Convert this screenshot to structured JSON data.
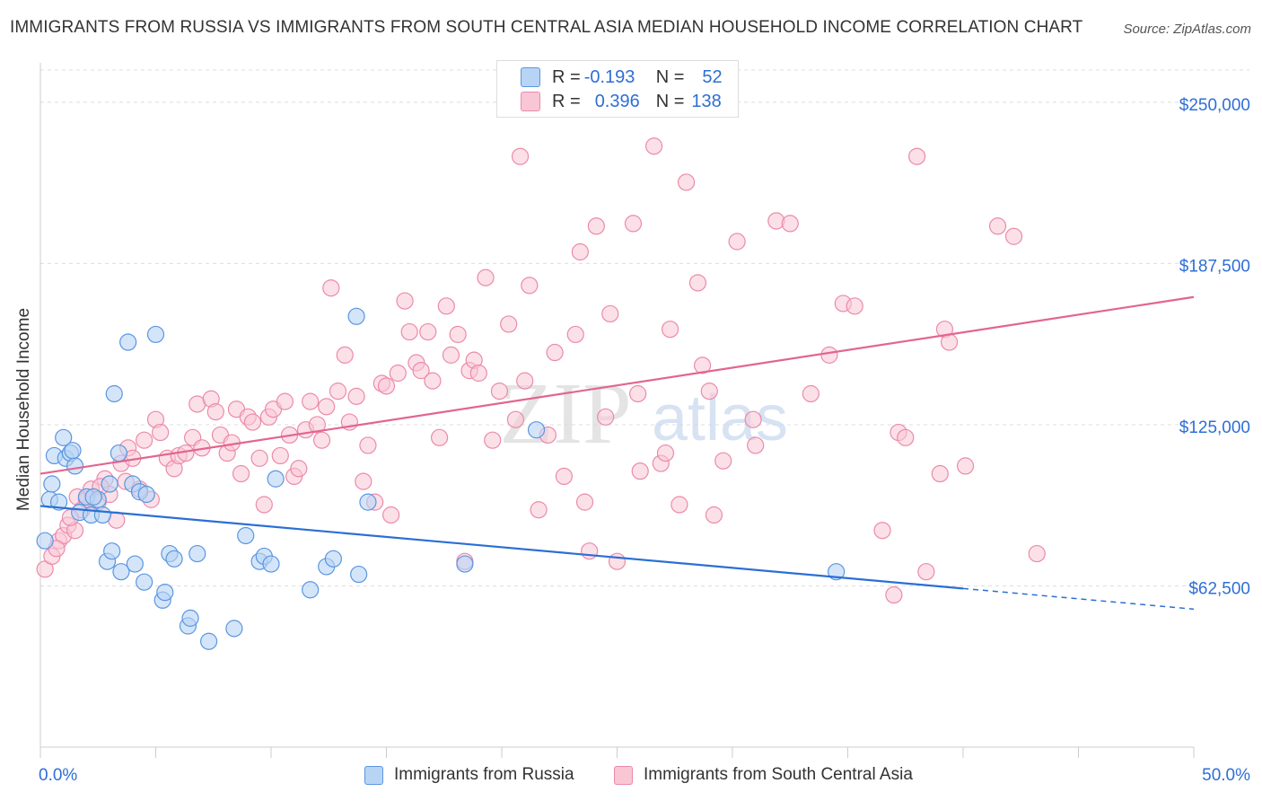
{
  "title": "IMMIGRANTS FROM RUSSIA VS IMMIGRANTS FROM SOUTH CENTRAL ASIA MEDIAN HOUSEHOLD INCOME CORRELATION CHART",
  "source": "Source: ZipAtlas.com",
  "watermark": {
    "zip": "ZIP",
    "atlas": "atlas"
  },
  "legend": {
    "russia": {
      "r_label": "R = ",
      "r_value": "-0.193",
      "n_label": "N = ",
      "n_value": "52"
    },
    "sca": {
      "r_label": "R = ",
      "r_value": "0.396",
      "n_label": "N = ",
      "n_value": "138"
    }
  },
  "colors": {
    "russia_fill": "#b8d4f5",
    "russia_stroke": "#5a96e0",
    "russia_line": "#2a6fd4",
    "sca_fill": "#f9c6d6",
    "sca_stroke": "#eb8aaa",
    "sca_line": "#e26590",
    "axis_text": "#2e6ed6",
    "grid": "#dddddd"
  },
  "chart_data": {
    "type": "scatter",
    "title": "IMMIGRANTS FROM RUSSIA VS IMMIGRANTS FROM SOUTH CENTRAL ASIA MEDIAN HOUSEHOLD INCOME CORRELATION CHART",
    "xlabel": "",
    "ylabel": "Median Household Income",
    "xlim": [
      0,
      50
    ],
    "ylim": [
      0,
      262500
    ],
    "x_tick_labels": [
      "0.0%",
      "50.0%"
    ],
    "y_ticks": [
      62500,
      125000,
      187500,
      250000
    ],
    "y_tick_labels": [
      "$62,500",
      "$125,000",
      "$187,500",
      "$250,000"
    ],
    "grid": true,
    "legend_position": "top-center",
    "series": [
      {
        "name": "Immigrants from Russia",
        "r": -0.193,
        "n": 52,
        "trend": {
          "x0": 0,
          "y0": 93500,
          "x1": 40,
          "y1": 61500,
          "dashed_to_x": 50,
          "dashed_to_y": 53500
        },
        "points": [
          [
            0.2,
            80000
          ],
          [
            0.4,
            96000
          ],
          [
            0.5,
            102000
          ],
          [
            0.6,
            113000
          ],
          [
            0.8,
            95000
          ],
          [
            1.0,
            120000
          ],
          [
            1.1,
            112000
          ],
          [
            1.3,
            114000
          ],
          [
            1.5,
            109000
          ],
          [
            1.7,
            91000
          ],
          [
            2.0,
            97000
          ],
          [
            2.2,
            90000
          ],
          [
            2.5,
            96000
          ],
          [
            2.7,
            90000
          ],
          [
            2.9,
            72000
          ],
          [
            3.1,
            76000
          ],
          [
            3.2,
            137000
          ],
          [
            3.4,
            114000
          ],
          [
            3.5,
            68000
          ],
          [
            3.8,
            157000
          ],
          [
            4.0,
            102000
          ],
          [
            4.1,
            71000
          ],
          [
            4.3,
            99000
          ],
          [
            4.5,
            64000
          ],
          [
            4.6,
            98000
          ],
          [
            5.0,
            160000
          ],
          [
            5.3,
            57000
          ],
          [
            5.4,
            60000
          ],
          [
            5.6,
            75000
          ],
          [
            5.8,
            73000
          ],
          [
            6.4,
            47000
          ],
          [
            6.5,
            50000
          ],
          [
            6.8,
            75000
          ],
          [
            7.3,
            41000
          ],
          [
            8.4,
            46000
          ],
          [
            8.9,
            82000
          ],
          [
            9.5,
            72000
          ],
          [
            9.7,
            74000
          ],
          [
            10.0,
            71000
          ],
          [
            10.2,
            104000
          ],
          [
            11.7,
            61000
          ],
          [
            12.4,
            70000
          ],
          [
            12.7,
            73000
          ],
          [
            13.7,
            167000
          ],
          [
            13.8,
            67000
          ],
          [
            14.2,
            95000
          ],
          [
            18.4,
            71000
          ],
          [
            21.5,
            123000
          ],
          [
            34.5,
            68000
          ],
          [
            1.4,
            115000
          ],
          [
            2.3,
            97000
          ],
          [
            3.0,
            102000
          ]
        ]
      },
      {
        "name": "Immigrants from South Central Asia",
        "r": 0.396,
        "n": 138,
        "trend": {
          "x0": 0,
          "y0": 106000,
          "x1": 50,
          "y1": 174500
        },
        "points": [
          [
            0.2,
            69000
          ],
          [
            0.5,
            74000
          ],
          [
            0.8,
            80000
          ],
          [
            1.0,
            82000
          ],
          [
            1.2,
            86000
          ],
          [
            1.5,
            84000
          ],
          [
            1.6,
            97000
          ],
          [
            1.8,
            92000
          ],
          [
            2.0,
            96000
          ],
          [
            2.2,
            100000
          ],
          [
            2.5,
            95000
          ],
          [
            2.8,
            104000
          ],
          [
            3.0,
            98000
          ],
          [
            3.3,
            88000
          ],
          [
            3.5,
            110000
          ],
          [
            3.7,
            103000
          ],
          [
            3.8,
            116000
          ],
          [
            4.0,
            112000
          ],
          [
            4.3,
            100000
          ],
          [
            4.5,
            119000
          ],
          [
            4.8,
            96000
          ],
          [
            5.0,
            127000
          ],
          [
            5.2,
            122000
          ],
          [
            5.5,
            112000
          ],
          [
            5.8,
            108000
          ],
          [
            6.0,
            113000
          ],
          [
            6.3,
            114000
          ],
          [
            6.6,
            120000
          ],
          [
            6.8,
            133000
          ],
          [
            7.0,
            116000
          ],
          [
            7.4,
            135000
          ],
          [
            7.6,
            130000
          ],
          [
            7.8,
            121000
          ],
          [
            8.1,
            114000
          ],
          [
            8.3,
            118000
          ],
          [
            8.5,
            131000
          ],
          [
            8.7,
            106000
          ],
          [
            9.0,
            128000
          ],
          [
            9.2,
            126000
          ],
          [
            9.5,
            112000
          ],
          [
            9.7,
            94000
          ],
          [
            9.9,
            128000
          ],
          [
            10.1,
            131000
          ],
          [
            10.4,
            113000
          ],
          [
            10.6,
            134000
          ],
          [
            10.8,
            121000
          ],
          [
            11.0,
            105000
          ],
          [
            11.2,
            108000
          ],
          [
            11.5,
            123000
          ],
          [
            11.7,
            134000
          ],
          [
            12.0,
            125000
          ],
          [
            12.2,
            119000
          ],
          [
            12.4,
            132000
          ],
          [
            12.6,
            178000
          ],
          [
            12.9,
            138000
          ],
          [
            13.2,
            152000
          ],
          [
            13.4,
            126000
          ],
          [
            13.7,
            136000
          ],
          [
            14.0,
            103000
          ],
          [
            14.2,
            117000
          ],
          [
            14.5,
            95000
          ],
          [
            14.8,
            141000
          ],
          [
            15.0,
            140000
          ],
          [
            15.2,
            90000
          ],
          [
            15.5,
            145000
          ],
          [
            15.8,
            173000
          ],
          [
            16.0,
            161000
          ],
          [
            16.3,
            149000
          ],
          [
            16.5,
            146000
          ],
          [
            16.8,
            161000
          ],
          [
            17.0,
            142000
          ],
          [
            17.3,
            120000
          ],
          [
            17.6,
            171000
          ],
          [
            17.8,
            152000
          ],
          [
            18.1,
            160000
          ],
          [
            18.4,
            72000
          ],
          [
            18.6,
            146000
          ],
          [
            18.8,
            150000
          ],
          [
            19.0,
            145000
          ],
          [
            19.3,
            182000
          ],
          [
            19.6,
            119000
          ],
          [
            19.9,
            138000
          ],
          [
            20.3,
            164000
          ],
          [
            20.6,
            127000
          ],
          [
            20.8,
            229000
          ],
          [
            21.0,
            142000
          ],
          [
            21.2,
            179000
          ],
          [
            21.6,
            92000
          ],
          [
            22.0,
            121000
          ],
          [
            22.3,
            153000
          ],
          [
            22.7,
            105000
          ],
          [
            23.2,
            160000
          ],
          [
            23.4,
            192000
          ],
          [
            23.6,
            95000
          ],
          [
            23.8,
            76000
          ],
          [
            24.1,
            202000
          ],
          [
            24.5,
            128000
          ],
          [
            24.7,
            168000
          ],
          [
            25.0,
            72000
          ],
          [
            25.7,
            203000
          ],
          [
            25.9,
            137000
          ],
          [
            26.0,
            107000
          ],
          [
            26.6,
            233000
          ],
          [
            26.9,
            110000
          ],
          [
            27.1,
            114000
          ],
          [
            27.3,
            162000
          ],
          [
            27.7,
            94000
          ],
          [
            28.0,
            219000
          ],
          [
            28.5,
            180000
          ],
          [
            28.7,
            148000
          ],
          [
            29.0,
            138000
          ],
          [
            29.2,
            90000
          ],
          [
            29.6,
            111000
          ],
          [
            30.2,
            196000
          ],
          [
            30.9,
            127000
          ],
          [
            31.0,
            117000
          ],
          [
            31.9,
            204000
          ],
          [
            32.5,
            203000
          ],
          [
            33.4,
            137000
          ],
          [
            34.2,
            152000
          ],
          [
            34.8,
            172000
          ],
          [
            35.3,
            171000
          ],
          [
            36.5,
            84000
          ],
          [
            37.0,
            59000
          ],
          [
            37.2,
            122000
          ],
          [
            37.5,
            120000
          ],
          [
            38.0,
            229000
          ],
          [
            38.4,
            68000
          ],
          [
            39.0,
            106000
          ],
          [
            39.2,
            162000
          ],
          [
            39.4,
            157000
          ],
          [
            40.1,
            109000
          ],
          [
            41.5,
            202000
          ],
          [
            42.2,
            198000
          ],
          [
            43.2,
            75000
          ],
          [
            0.7,
            77000
          ],
          [
            1.3,
            89000
          ],
          [
            2.6,
            101000
          ]
        ]
      }
    ]
  }
}
